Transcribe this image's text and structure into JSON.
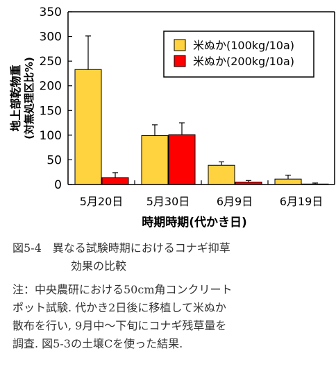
{
  "chart_data": {
    "type": "bar",
    "categories": [
      "5月20日",
      "5月30日",
      "6月9日",
      "6月19日"
    ],
    "series": [
      {
        "name": "米ぬか(100kg/10a)",
        "values": [
          233,
          99,
          39,
          11
        ],
        "errors": [
          68,
          22,
          7,
          8
        ],
        "color": "#ffd23f"
      },
      {
        "name": "米ぬか(200kg/10a)",
        "values": [
          14,
          101,
          5,
          1
        ],
        "errors": [
          10,
          24,
          3,
          2
        ],
        "color": "#ff0000"
      }
    ],
    "xlabel": "時期時期(代かき日)",
    "ylabel_line1": "地上部乾物重",
    "ylabel_line2": "(対無処理区比%)",
    "ylim": [
      0,
      350
    ],
    "yticks": [
      0,
      50,
      100,
      150,
      200,
      250,
      300,
      350
    ],
    "grid": false,
    "legend_position": "top-right"
  },
  "caption": {
    "line1": "図5-4　異なる試験時期におけるコナギ抑草",
    "line2": "効果の比較"
  },
  "note": {
    "lines": [
      "注：中央農研における50cm角コンクリート",
      "ポット試験. 代かき2日後に移植して米ぬか",
      "散布を行い, 9月中～下旬にコナギ残草量を",
      "調査. 図5-3の土壌Cを使った結果."
    ]
  }
}
